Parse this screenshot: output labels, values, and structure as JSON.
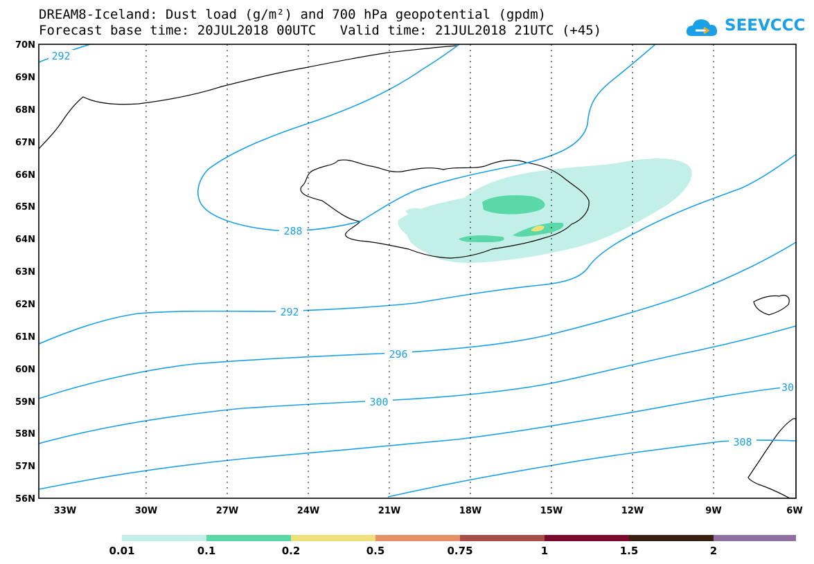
{
  "title": {
    "line1": "DREAM8-Iceland: Dust load (g/m²) and 700 hPa geopotential (gpdm)",
    "line2": "Forecast base time: 20JUL2018 00UTC   Valid time: 21JUL2018 21UTC (+45)"
  },
  "logo": {
    "text": "SEEVCCC",
    "icon": "cloud-logo-icon",
    "color": "#1aa0e6"
  },
  "map": {
    "lat_labels": [
      "70N",
      "69N",
      "68N",
      "67N",
      "66N",
      "65N",
      "64N",
      "63N",
      "62N",
      "61N",
      "60N",
      "59N",
      "58N",
      "57N",
      "56N"
    ],
    "lon_labels": [
      "33W",
      "30W",
      "27W",
      "24W",
      "21W",
      "18W",
      "15W",
      "12W",
      "9W",
      "6W"
    ],
    "contour_labels": [
      "292",
      "288",
      "292",
      "296",
      "300",
      "30",
      "308"
    ],
    "contour_color": "#1aa0e6"
  },
  "colorbar": {
    "labels": [
      "0.01",
      "0.1",
      "0.2",
      "0.5",
      "0.75",
      "1",
      "1.5",
      "2"
    ],
    "colors": [
      "#c2f0e8",
      "#5ad8a8",
      "#f0e07a",
      "#e8906a",
      "#a84e48",
      "#7c0a2c",
      "#3a2010",
      "#9070a0"
    ]
  }
}
